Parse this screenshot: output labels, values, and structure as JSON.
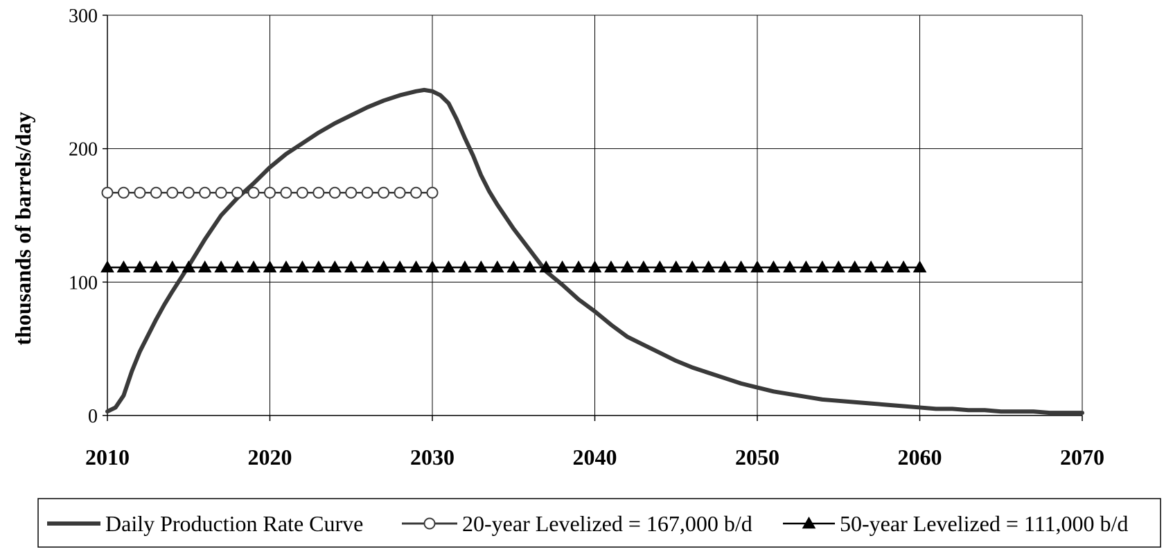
{
  "chart_data": {
    "type": "line",
    "title": "",
    "xlabel": "",
    "ylabel": "thousands of barrels/day",
    "xlim": [
      2010,
      2070
    ],
    "ylim": [
      0,
      300
    ],
    "x_ticks": [
      "2010",
      "2020",
      "2030",
      "2040",
      "2050",
      "2060",
      "2070"
    ],
    "y_ticks": [
      "0",
      "100",
      "200",
      "300"
    ],
    "grid": true,
    "legend_position": "bottom",
    "series": [
      {
        "name": "Daily Production Rate Curve",
        "color": "#3a3a3a",
        "marker": "none",
        "x": [
          2010,
          2010.5,
          2011,
          2011.5,
          2012,
          2012.5,
          2013,
          2013.5,
          2014,
          2015,
          2016,
          2017,
          2018,
          2019,
          2020,
          2021,
          2022,
          2023,
          2024,
          2025,
          2026,
          2027,
          2028,
          2029,
          2029.5,
          2030,
          2030.5,
          2031,
          2031.5,
          2032,
          2032.5,
          2033,
          2033.5,
          2034,
          2035,
          2036,
          2037,
          2038,
          2039,
          2040,
          2041,
          2042,
          2043,
          2044,
          2045,
          2046,
          2047,
          2048,
          2049,
          2050,
          2051,
          2052,
          2053,
          2054,
          2055,
          2056,
          2057,
          2058,
          2059,
          2060,
          2061,
          2062,
          2063,
          2064,
          2065,
          2066,
          2067,
          2068,
          2069,
          2070
        ],
        "y": [
          3,
          6,
          15,
          33,
          48,
          60,
          72,
          83,
          93,
          112,
          132,
          150,
          163,
          174,
          186,
          196,
          204,
          212,
          219,
          225,
          231,
          236,
          240,
          243,
          244,
          243,
          240,
          234,
          222,
          208,
          195,
          180,
          168,
          158,
          140,
          124,
          108,
          98,
          87,
          78,
          68,
          59,
          53,
          47,
          41,
          36,
          32,
          28,
          24,
          21,
          18,
          16,
          14,
          12,
          11,
          10,
          9,
          8,
          7,
          6,
          5,
          5,
          4,
          4,
          3,
          3,
          3,
          2,
          2,
          2
        ]
      },
      {
        "name": "20-year Levelized = 167,000 b/d",
        "color": "#3a3a3a",
        "marker": "open-circle",
        "x": [
          2010,
          2011,
          2012,
          2013,
          2014,
          2015,
          2016,
          2017,
          2018,
          2019,
          2020,
          2021,
          2022,
          2023,
          2024,
          2025,
          2026,
          2027,
          2028,
          2029,
          2030
        ],
        "y": [
          167,
          167,
          167,
          167,
          167,
          167,
          167,
          167,
          167,
          167,
          167,
          167,
          167,
          167,
          167,
          167,
          167,
          167,
          167,
          167,
          167
        ]
      },
      {
        "name": "50-year Levelized = 111,000 b/d",
        "color": "#000000",
        "marker": "filled-triangle",
        "x": [
          2010,
          2011,
          2012,
          2013,
          2014,
          2015,
          2016,
          2017,
          2018,
          2019,
          2020,
          2021,
          2022,
          2023,
          2024,
          2025,
          2026,
          2027,
          2028,
          2029,
          2030,
          2031,
          2032,
          2033,
          2034,
          2035,
          2036,
          2037,
          2038,
          2039,
          2040,
          2041,
          2042,
          2043,
          2044,
          2045,
          2046,
          2047,
          2048,
          2049,
          2050,
          2051,
          2052,
          2053,
          2054,
          2055,
          2056,
          2057,
          2058,
          2059,
          2060
        ],
        "y": [
          111,
          111,
          111,
          111,
          111,
          111,
          111,
          111,
          111,
          111,
          111,
          111,
          111,
          111,
          111,
          111,
          111,
          111,
          111,
          111,
          111,
          111,
          111,
          111,
          111,
          111,
          111,
          111,
          111,
          111,
          111,
          111,
          111,
          111,
          111,
          111,
          111,
          111,
          111,
          111,
          111,
          111,
          111,
          111,
          111,
          111,
          111,
          111,
          111,
          111,
          111
        ]
      }
    ]
  }
}
